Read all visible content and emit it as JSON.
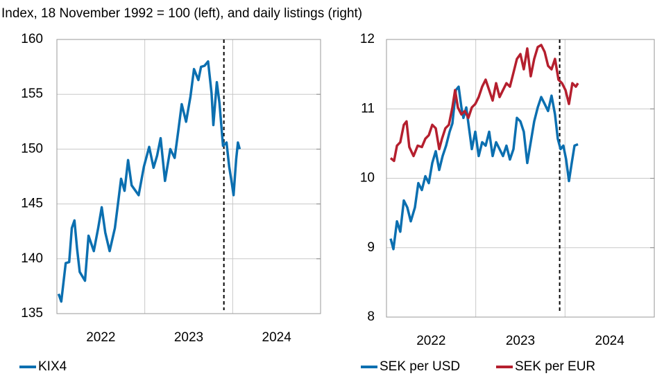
{
  "title": "Index, 18 November 1992 = 100 (left), and daily listings (right)",
  "chart_data": [
    {
      "type": "line",
      "xlim": [
        2022,
        2025
      ],
      "ylim": [
        135,
        160
      ],
      "yticks": [
        135,
        140,
        145,
        150,
        155,
        160
      ],
      "xticks": [
        {
          "value": 2022.5,
          "label": "2022"
        },
        {
          "value": 2023.5,
          "label": "2023"
        },
        {
          "value": 2024.5,
          "label": "2024"
        }
      ],
      "xgrid": [
        2023,
        2024
      ],
      "vline": 2023.9,
      "grid": true,
      "series": [
        {
          "name": "KIX4",
          "color": "#0b6fb0",
          "x": [
            2022.02,
            2022.05,
            2022.1,
            2022.14,
            2022.17,
            2022.2,
            2022.23,
            2022.26,
            2022.32,
            2022.36,
            2022.42,
            2022.47,
            2022.51,
            2022.55,
            2022.6,
            2022.66,
            2022.69,
            2022.73,
            2022.77,
            2022.81,
            2022.85,
            2022.93,
            2022.99,
            2023.05,
            2023.1,
            2023.14,
            2023.18,
            2023.23,
            2023.29,
            2023.34,
            2023.38,
            2023.42,
            2023.47,
            2023.52,
            2023.56,
            2023.61,
            2023.64,
            2023.68,
            2023.72,
            2023.76,
            2023.78,
            2023.82,
            2023.85,
            2023.89,
            2023.93,
            2023.96,
            2023.99,
            2024.01,
            2024.04,
            2024.06,
            2024.08
          ],
          "values": [
            136.8,
            136.1,
            139.6,
            139.7,
            142.8,
            143.5,
            140.9,
            138.8,
            138.0,
            142.1,
            140.7,
            142.8,
            144.7,
            142.4,
            140.7,
            142.8,
            144.7,
            147.3,
            146.2,
            149.0,
            146.7,
            145.8,
            148.4,
            150.2,
            148.3,
            149.4,
            151.0,
            147.1,
            150.0,
            149.2,
            151.6,
            154.1,
            152.5,
            154.8,
            157.3,
            156.3,
            157.5,
            157.6,
            158.0,
            155.1,
            152.2,
            156.1,
            154.2,
            150.3,
            150.6,
            148.4,
            146.9,
            145.8,
            149.1,
            150.6,
            150.0
          ]
        }
      ]
    },
    {
      "type": "line",
      "xlim": [
        2022,
        2025
      ],
      "ylim": [
        8,
        12
      ],
      "yticks": [
        8,
        9,
        10,
        11,
        12
      ],
      "xticks": [
        {
          "value": 2022.5,
          "label": "2022"
        },
        {
          "value": 2023.5,
          "label": "2023"
        },
        {
          "value": 2024.5,
          "label": "2024"
        }
      ],
      "xgrid": [
        2023,
        2024
      ],
      "vline": 2023.94,
      "grid": true,
      "series": [
        {
          "name": "SEK per USD",
          "color": "#0b6fb0",
          "x": [
            2022.047,
            2022.078,
            2022.117,
            2022.155,
            2022.194,
            2022.233,
            2022.272,
            2022.319,
            2022.357,
            2022.396,
            2022.435,
            2022.474,
            2022.513,
            2022.552,
            2022.591,
            2022.629,
            2022.668,
            2022.707,
            2022.738,
            2022.777,
            2022.808,
            2022.839,
            2022.862,
            2022.894,
            2022.925,
            2022.956,
            2022.995,
            2023.033,
            2023.072,
            2023.111,
            2023.15,
            2023.189,
            2023.228,
            2023.267,
            2023.305,
            2023.344,
            2023.383,
            2023.422,
            2023.461,
            2023.5,
            2023.538,
            2023.577,
            2023.616,
            2023.655,
            2023.694,
            2023.733,
            2023.772,
            2023.81,
            2023.849,
            2023.888,
            2023.919,
            2023.95,
            2023.981,
            2024.012,
            2024.044,
            2024.075,
            2024.106,
            2024.145
          ],
          "values": [
            9.13,
            8.98,
            9.38,
            9.23,
            9.68,
            9.58,
            9.38,
            9.58,
            9.93,
            9.83,
            10.03,
            9.93,
            10.22,
            10.39,
            10.12,
            10.32,
            10.47,
            10.67,
            10.79,
            11.27,
            11.32,
            11.02,
            10.87,
            11.02,
            10.72,
            10.42,
            10.67,
            10.32,
            10.52,
            10.47,
            10.67,
            10.32,
            10.52,
            10.42,
            10.32,
            10.47,
            10.27,
            10.42,
            10.87,
            10.82,
            10.67,
            10.22,
            10.52,
            10.82,
            11.02,
            11.17,
            11.07,
            10.97,
            11.19,
            10.92,
            10.57,
            10.42,
            10.47,
            10.27,
            9.96,
            10.22,
            10.47,
            10.49
          ]
        },
        {
          "name": "SEK per EUR",
          "color": "#b51f2e",
          "x": [
            2022.047,
            2022.085,
            2022.117,
            2022.155,
            2022.194,
            2022.225,
            2022.256,
            2022.303,
            2022.35,
            2022.396,
            2022.435,
            2022.474,
            2022.513,
            2022.552,
            2022.591,
            2022.622,
            2022.66,
            2022.699,
            2022.738,
            2022.769,
            2022.8,
            2022.839,
            2022.878,
            2022.917,
            2022.956,
            2022.995,
            2023.033,
            2023.072,
            2023.111,
            2023.15,
            2023.189,
            2023.228,
            2023.267,
            2023.305,
            2023.344,
            2023.383,
            2023.422,
            2023.461,
            2023.5,
            2023.538,
            2023.577,
            2023.616,
            2023.655,
            2023.694,
            2023.733,
            2023.772,
            2023.81,
            2023.849,
            2023.888,
            2023.927,
            2023.966,
            2024.005,
            2024.044,
            2024.082,
            2024.121,
            2024.145
          ],
          "values": [
            10.29,
            10.25,
            10.47,
            10.52,
            10.77,
            10.82,
            10.45,
            10.32,
            10.47,
            10.45,
            10.57,
            10.62,
            10.77,
            10.72,
            10.42,
            10.57,
            10.72,
            10.77,
            11.02,
            11.27,
            11.02,
            10.92,
            10.97,
            10.87,
            11.02,
            11.07,
            11.17,
            11.32,
            11.42,
            11.27,
            11.12,
            11.37,
            11.17,
            11.27,
            11.37,
            11.32,
            11.52,
            11.72,
            11.79,
            11.57,
            11.87,
            11.47,
            11.72,
            11.89,
            11.92,
            11.82,
            11.62,
            11.57,
            11.72,
            11.42,
            11.37,
            11.27,
            11.07,
            11.37,
            11.32,
            11.37
          ]
        }
      ]
    }
  ]
}
